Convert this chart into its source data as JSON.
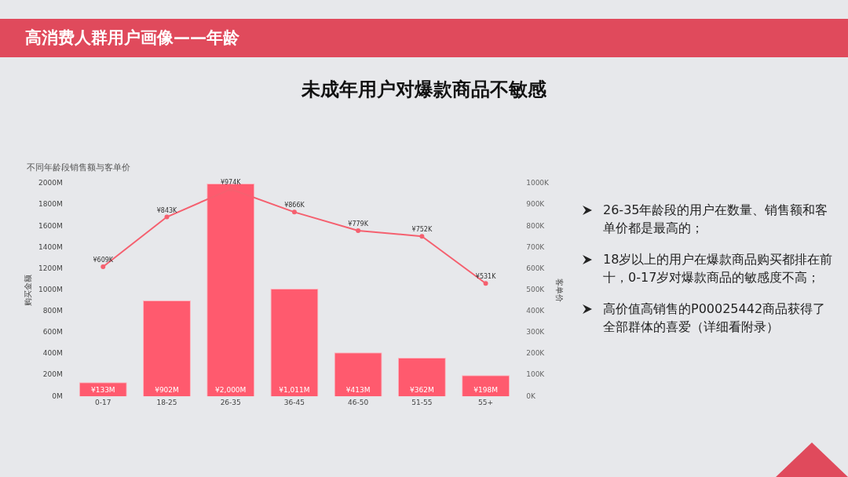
{
  "chart_data": {
    "type": "bar",
    "title": "高消费人群用户画像——年龄",
    "subtitle": "未成年用户对爆款商品不敏感",
    "annotations": [
      "不同年龄段销售额与客单价",
      "26-35年龄段的用户在数量、销售额和客单价都是最高的；",
      "18岁以上的用户在爆款商品购买都排在前十，0-17岁对爆款商品的敏感度不高；",
      "高价值高销售的P00025442商品获得了全部群体的喜爱（详细看附录）"
    ],
    "ylabel": "购买金额",
    "y2label": "客单价",
    "categories": [
      "0-17",
      "18-25",
      "26-35",
      "36-45",
      "46-50",
      "51-55",
      "55+"
    ],
    "series": [
      {
        "color": "#ff5a6e",
        "values": [
          133,
          902,
          2000,
          1011,
          413,
          362,
          198
        ],
        "value_labels": [
          "¥133M",
          "¥902M",
          "¥2,000M",
          "¥1,011M",
          "¥413M",
          "¥362M",
          "¥198M"
        ]
      },
      {
        "type": "line",
        "axis": "y2",
        "color": "#f5606f",
        "values": [
          609,
          843,
          974,
          866,
          779,
          752,
          531
        ],
        "value_labels": [
          "¥609K",
          "¥843K",
          "¥974K",
          "¥866K",
          "¥779K",
          "¥752K",
          "¥531K"
        ]
      }
    ],
    "ylim": [
      0,
      2000
    ],
    "yticks": [
      {
        "value": 0,
        "label": "0M"
      },
      {
        "value": 200,
        "label": "200M"
      },
      {
        "value": 400,
        "label": "400M"
      },
      {
        "value": 600,
        "label": "600M"
      },
      {
        "value": 800,
        "label": "800M"
      },
      {
        "value": 1000,
        "label": "1000M"
      },
      {
        "value": 1200,
        "label": "1200M"
      },
      {
        "value": 1400,
        "label": "1400M"
      },
      {
        "value": 1600,
        "label": "1600M"
      },
      {
        "value": 1800,
        "label": "1800M"
      },
      {
        "value": 2000,
        "label": "2000M"
      }
    ],
    "y2lim": [
      0,
      1000
    ],
    "y2ticks": [
      {
        "value": 0,
        "label": "0K"
      },
      {
        "value": 100,
        "label": "100K"
      },
      {
        "value": 200,
        "label": "200K"
      },
      {
        "value": 300,
        "label": "300K"
      },
      {
        "value": 400,
        "label": "400K"
      },
      {
        "value": 500,
        "label": "500K"
      },
      {
        "value": 600,
        "label": "600K"
      },
      {
        "value": 700,
        "label": "700K"
      },
      {
        "value": 800,
        "label": "800K"
      },
      {
        "value": 900,
        "label": "900K"
      },
      {
        "value": 1000,
        "label": "1000K"
      }
    ],
    "grid": false,
    "legend": false,
    "marker": "circle",
    "line_style": "solid"
  }
}
